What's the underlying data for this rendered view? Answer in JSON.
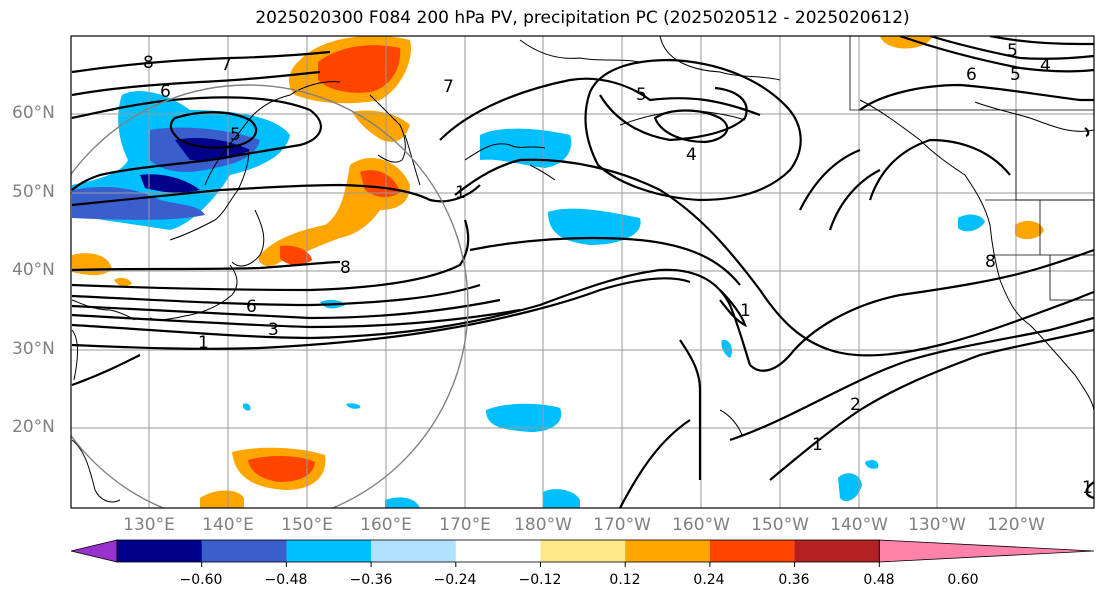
{
  "title": "2025020300 F084 200 hPa PV, precipitation PC (2025020512 - 2025020612)",
  "lat_labels": [
    "60°N",
    "50°N",
    "40°N",
    "30°N",
    "20°N"
  ],
  "lon_labels": [
    "130°E",
    "140°E",
    "150°E",
    "160°E",
    "170°E",
    "180°W",
    "170°W",
    "160°W",
    "150°W",
    "140°W",
    "130°W",
    "120°W"
  ],
  "colorbar": {
    "tick_labels": [
      "−0.60",
      "−0.48",
      "−0.36",
      "−0.24",
      "−0.12",
      "0.12",
      "0.24",
      "0.36",
      "0.48",
      "0.60"
    ],
    "colors": [
      "#9932cc",
      "#00008b",
      "#3a5fcd",
      "#00bfff",
      "#b0e2ff",
      "#ffffff",
      "#ffe888",
      "#ffa500",
      "#ff4500",
      "#b22222",
      "#ff82ab"
    ]
  },
  "contour_labels": {
    "l8a": "8",
    "l7a": "7",
    "l6a": "6",
    "l5a": "5",
    "l7b": "7",
    "l5b": "5",
    "l4a": "4",
    "l1a": "1",
    "l8b": "8",
    "l6b": "6",
    "l3a": "3",
    "l1b": "1",
    "l1c": "1",
    "l2a": "2",
    "l1d": "1",
    "l6c": "6",
    "l5c": "5",
    "l4b": "4",
    "l5d": "5",
    "l8c": "8",
    "l1e": "1"
  }
}
